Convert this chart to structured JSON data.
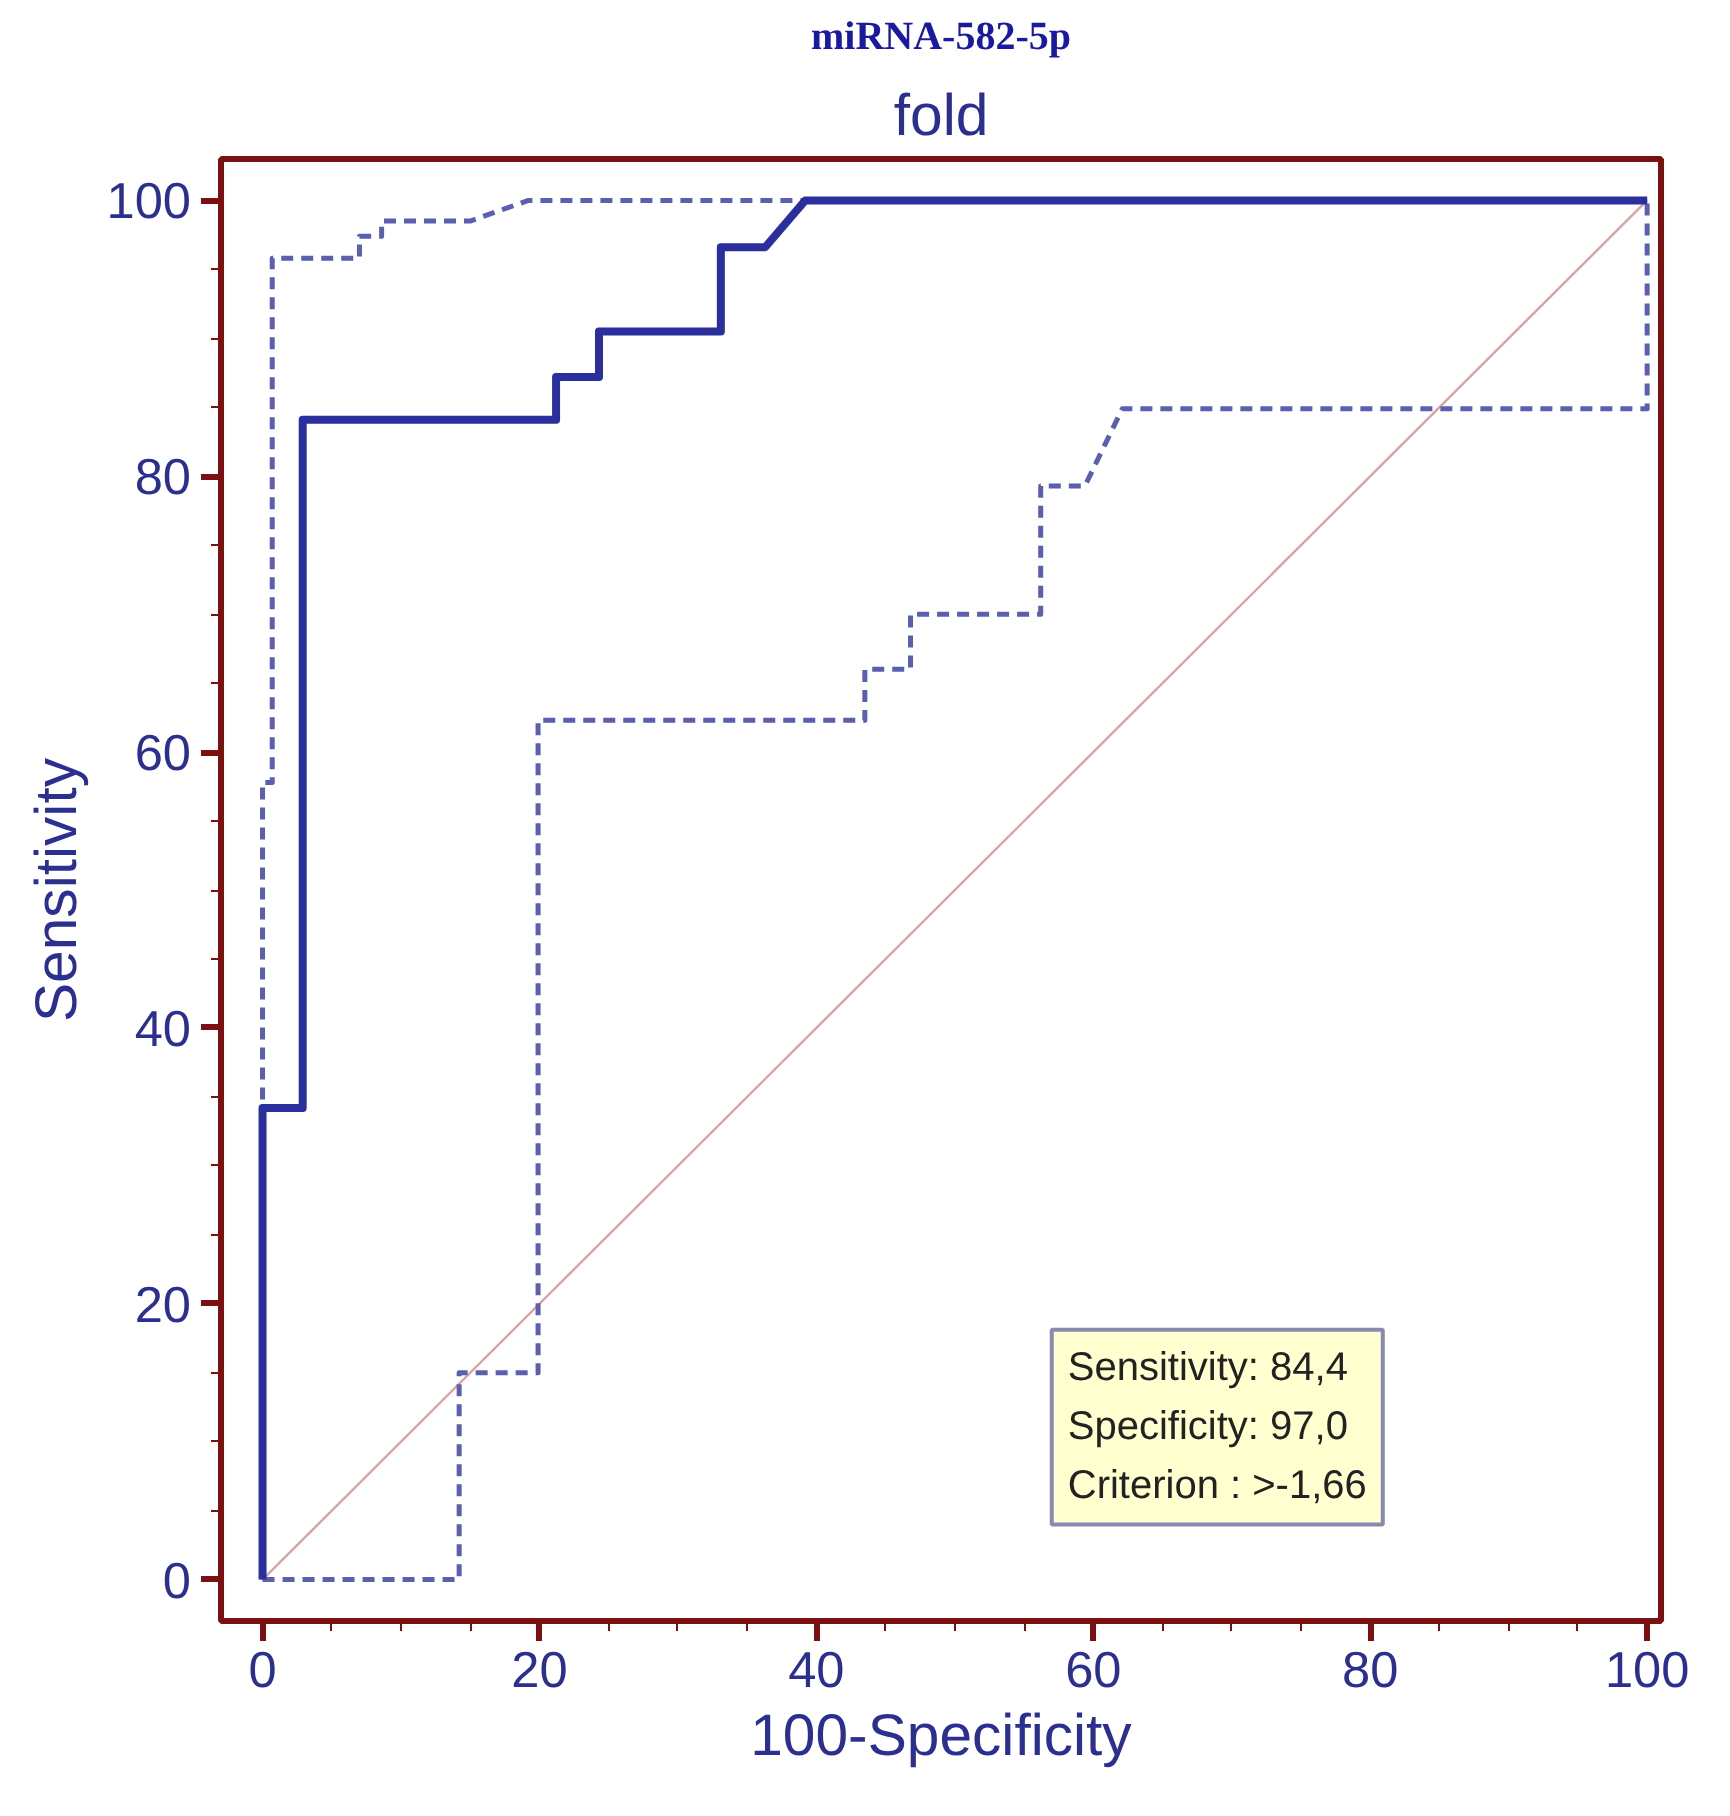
{
  "chart_data": {
    "type": "line",
    "title": "miRNA-582-5p",
    "subtitle": "fold",
    "xlabel": "100-Specificity",
    "ylabel": "Sensitivity",
    "xlim": [
      -3,
      101
    ],
    "ylim": [
      -3,
      103
    ],
    "xticks": [
      0,
      20,
      40,
      60,
      80,
      100
    ],
    "yticks": [
      0,
      20,
      40,
      60,
      80,
      100
    ],
    "grid": false,
    "series": [
      {
        "color": "#d9a3a3",
        "x": [
          0,
          100
        ],
        "values": [
          0,
          100
        ]
      },
      {
        "color": "#5a5fb0",
        "line_style": "dashed",
        "x": [
          0,
          14.2,
          14.2,
          19.9,
          19.9,
          43.5,
          43.5,
          46.8,
          46.8,
          56.2,
          56.2,
          59.4,
          62.1,
          100,
          100
        ],
        "values": [
          0,
          0,
          15,
          15,
          62.3,
          62.3,
          66,
          66,
          70,
          70,
          79.3,
          79.3,
          84.9,
          84.9,
          100
        ]
      },
      {
        "color": "#5a5fb0",
        "line_style": "dashed",
        "x": [
          0,
          0,
          0.7,
          0.7,
          7.0,
          7.0,
          8.6,
          8.6,
          15,
          19.2,
          100
        ],
        "values": [
          0,
          57.8,
          57.8,
          95.8,
          95.8,
          97.4,
          97.4,
          98.5,
          98.5,
          100,
          100
        ]
      },
      {
        "color": "#2b2f9e",
        "line_style": "solid",
        "x": [
          0,
          0,
          2.9,
          2.9,
          21.2,
          21.2,
          24.3,
          24.3,
          33.1,
          33.1,
          36.3,
          39.2,
          100
        ],
        "values": [
          0,
          34.2,
          34.2,
          84.1,
          84.1,
          87.2,
          87.2,
          90.5,
          90.5,
          96.6,
          96.6,
          100,
          100
        ]
      }
    ],
    "annotations": [
      "Sensitivity: 84,4",
      "Specificity: 97,0",
      "Criterion : >-1,66"
    ]
  }
}
